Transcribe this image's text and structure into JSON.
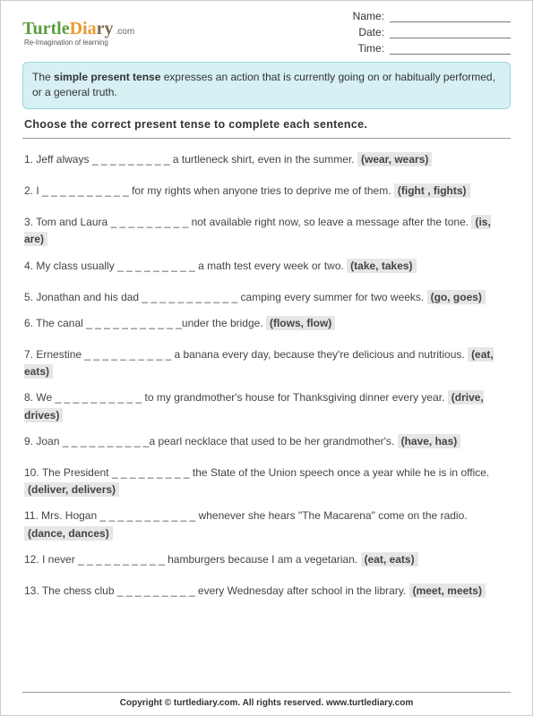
{
  "logo": {
    "word1": "Turtle",
    "word2": "Dia",
    "word3": "ry",
    "dotcom": ".com",
    "tagline": "Re-Imagination of learning"
  },
  "fields": {
    "name": "Name:",
    "date": "Date:",
    "time": "Time:"
  },
  "infobox": {
    "pre": "The ",
    "bold": "simple present tense",
    "post": " expresses an action that is currently going on or habitually performed, or a general truth."
  },
  "instructions": "Choose the correct present tense to complete each sentence.",
  "questions": [
    {
      "n": "1.",
      "text": "Jeff always _ _ _ _ _ _ _ _ _ a turtleneck shirt, even in the summer. ",
      "choice": "(wear, wears)"
    },
    {
      "n": "2.",
      "text": "I _ _ _ _ _ _ _ _ _ _ for my rights when anyone tries to deprive me of them. ",
      "choice": "(fight , fights)"
    },
    {
      "n": "3.",
      "text": "Tom and Laura _ _ _ _ _ _ _ _ _ not available right now, so leave a message after the tone. ",
      "choice": "(is, are)",
      "tight": false
    },
    {
      "n": "4.",
      "text": "My class usually  _ _ _ _ _ _ _ _ _  a math test every week or two. ",
      "choice": "(take, takes)",
      "tight": true
    },
    {
      "n": "5.",
      "text": "Jonathan and his dad _ _ _ _ _ _ _ _ _ _ _  camping every summer for two weeks. ",
      "choice": "(go, goes)"
    },
    {
      "n": "6.",
      "text": "The canal _ _ _ _ _ _ _ _ _ _ _under the bridge. ",
      "choice": "(flows, flow)",
      "tight": true
    },
    {
      "n": "7.",
      "text": "Ernestine _ _ _ _ _ _ _ _ _ _ a banana every day, because they're delicious and nutritious. ",
      "choice": "(eat, eats)"
    },
    {
      "n": "8.",
      "text": "We _ _ _ _ _ _ _ _ _ _ to my grandmother's house for Thanksgiving dinner every year. ",
      "choice": "(drive,  drives)",
      "tight": true
    },
    {
      "n": "9.",
      "text": "Joan _ _ _ _ _ _ _ _ _ _a pearl necklace that used to be her grandmother's. ",
      "choice": "(have, has)",
      "tight": true
    },
    {
      "n": "10.",
      "text": "The President _ _ _ _ _ _ _ _ _ the State of the Union speech once a year while he is in office. ",
      "choice": "(deliver,  delivers)"
    },
    {
      "n": "11.",
      "text": "Mrs. Hogan _ _ _ _ _ _ _ _ _ _ _  whenever she hears \"The Macarena\" come on the radio. ",
      "choice": "(dance, dances)",
      "tight": true
    },
    {
      "n": "12.",
      "text": "I never _ _ _ _ _ _ _ _ _ _  hamburgers because I am a vegetarian. ",
      "choice": "(eat, eats)",
      "tight": true
    },
    {
      "n": "13.",
      "text": "The chess club _ _ _ _ _ _ _ _ _ every Wednesday after school in the library. ",
      "choice": "(meet, meets)"
    }
  ],
  "footer": "Copyright © turtlediary.com. All rights reserved. www.turtlediary.com"
}
